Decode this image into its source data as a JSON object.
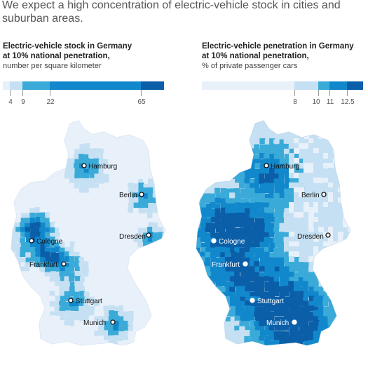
{
  "headline": "We expect a high concentration of electric-vehicle stock in cities and suburban areas.",
  "left_panel": {
    "title_line1": "Electric-vehicle stock in Germany",
    "title_line2": "at 10% national penetration,",
    "subtitle": "number per square kilometer",
    "legend_ticks": [
      "4",
      "9",
      "22",
      "65"
    ],
    "legend_colors": [
      "#e8f0fa",
      "#c5e0f2",
      "#3aaad8",
      "#1288cc",
      "#0a5fa8"
    ]
  },
  "right_panel": {
    "title_line1": "Electric-vehicle penetration in Germany",
    "title_line2": "at 10% national penetration,",
    "subtitle": "% of private passenger cars",
    "legend_ticks": [
      "8",
      "10",
      "11",
      "12.5"
    ],
    "legend_colors": [
      "#e8f0fa",
      "#c5e0f2",
      "#3aaad8",
      "#1288cc",
      "#0a5fa8"
    ]
  },
  "cities": [
    "Hamburg",
    "Berlin",
    "Dresden",
    "Cologne",
    "Frankfurt",
    "Stuttgart",
    "Munich"
  ]
}
